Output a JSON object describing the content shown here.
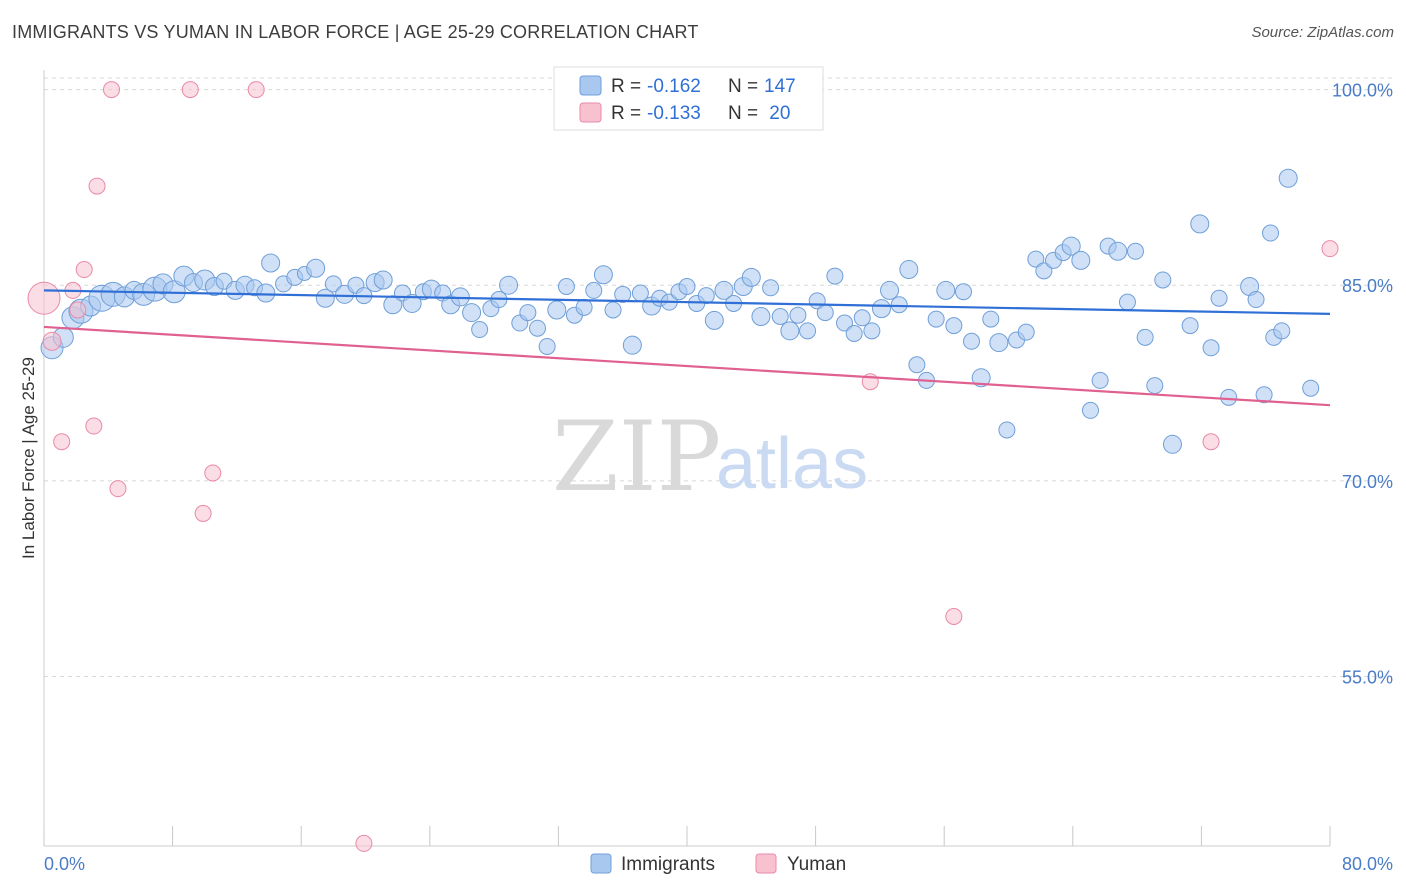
{
  "title": "IMMIGRANTS VS YUMAN IN LABOR FORCE | AGE 25-29 CORRELATION CHART",
  "source": "Source: ZipAtlas.com",
  "watermark": {
    "zip": "ZIP",
    "atlas": "atlas"
  },
  "colors": {
    "immigrants_fill": "#a9c8f0",
    "immigrants_stroke": "#6f9fd8",
    "immigrants_line": "#2f6fd6",
    "yuman_fill": "#f7c1d0",
    "yuman_stroke": "#e98aa8",
    "yuman_line": "#e0608f",
    "tick_text": "#4a7cc7",
    "grid": "#d8d8d8"
  },
  "legend": {
    "rows": [
      {
        "r_label": "R = ",
        "r_value": "-0.162",
        "n_label": "N = ",
        "n_value": "147"
      },
      {
        "r_label": "R = ",
        "r_value": "-0.133",
        "n_label": "N = ",
        "n_value": " 20"
      }
    ]
  },
  "bottom_legend": [
    "Immigrants",
    "Yuman"
  ],
  "chart_data": {
    "type": "scatter",
    "title": "IMMIGRANTS VS YUMAN IN LABOR FORCE | AGE 25-29 CORRELATION CHART",
    "xlabel": "",
    "ylabel": "In Labor Force | Age 25-29",
    "xlim": [
      0,
      80
    ],
    "ylim": [
      42,
      101.5
    ],
    "x_tick_labels": [
      "0.0%",
      "80.0%"
    ],
    "y_ticks": [
      55,
      70,
      85,
      100
    ],
    "y_tick_labels": [
      "55.0%",
      "70.0%",
      "85.0%",
      "100.0%"
    ],
    "grid": "horizontal dashed",
    "legend_position": "top-center",
    "series": [
      {
        "name": "Immigrants",
        "r": -0.162,
        "n": 147,
        "trend": {
          "x": [
            0,
            80
          ],
          "y": [
            84.6,
            82.8
          ]
        },
        "points": [
          [
            0.5,
            80.2,
            11
          ],
          [
            1.2,
            81.0,
            10
          ],
          [
            1.8,
            82.5,
            11
          ],
          [
            2.3,
            83.0,
            12
          ],
          [
            2.9,
            83.4,
            10
          ],
          [
            3.6,
            84.0,
            13
          ],
          [
            4.3,
            84.3,
            12
          ],
          [
            5.0,
            84.1,
            10
          ],
          [
            5.6,
            84.6,
            9
          ],
          [
            6.2,
            84.3,
            11
          ],
          [
            6.9,
            84.7,
            12
          ],
          [
            7.4,
            85.1,
            10
          ],
          [
            8.1,
            84.5,
            11
          ],
          [
            8.7,
            85.7,
            10
          ],
          [
            9.3,
            85.2,
            9
          ],
          [
            10.0,
            85.4,
            10
          ],
          [
            10.6,
            84.9,
            9
          ],
          [
            11.2,
            85.3,
            8
          ],
          [
            11.9,
            84.6,
            9
          ],
          [
            12.5,
            85.0,
            9
          ],
          [
            13.1,
            84.8,
            8
          ],
          [
            13.8,
            84.4,
            9
          ],
          [
            14.1,
            86.7,
            9
          ],
          [
            14.9,
            85.1,
            8
          ],
          [
            15.6,
            85.6,
            8
          ],
          [
            16.2,
            85.9,
            7
          ],
          [
            16.9,
            86.3,
            9
          ],
          [
            17.5,
            84.0,
            9
          ],
          [
            18.0,
            85.1,
            8
          ],
          [
            18.7,
            84.3,
            9
          ],
          [
            19.4,
            85.0,
            8
          ],
          [
            19.9,
            84.2,
            8
          ],
          [
            20.6,
            85.2,
            9
          ],
          [
            21.1,
            85.4,
            9
          ],
          [
            21.7,
            83.5,
            9
          ],
          [
            22.3,
            84.4,
            8
          ],
          [
            22.9,
            83.6,
            9
          ],
          [
            23.6,
            84.5,
            8
          ],
          [
            24.1,
            84.7,
            9
          ],
          [
            24.8,
            84.4,
            8
          ],
          [
            25.3,
            83.5,
            9
          ],
          [
            25.9,
            84.1,
            9
          ],
          [
            26.6,
            82.9,
            9
          ],
          [
            27.1,
            81.6,
            8
          ],
          [
            27.8,
            83.2,
            8
          ],
          [
            28.3,
            83.9,
            8
          ],
          [
            28.9,
            85.0,
            9
          ],
          [
            29.6,
            82.1,
            8
          ],
          [
            30.1,
            82.9,
            8
          ],
          [
            30.7,
            81.7,
            8
          ],
          [
            31.3,
            80.3,
            8
          ],
          [
            31.9,
            83.1,
            9
          ],
          [
            32.5,
            84.9,
            8
          ],
          [
            33.0,
            82.7,
            8
          ],
          [
            33.6,
            83.3,
            8
          ],
          [
            34.2,
            84.6,
            8
          ],
          [
            34.8,
            85.8,
            9
          ],
          [
            35.4,
            83.1,
            8
          ],
          [
            36.0,
            84.3,
            8
          ],
          [
            36.6,
            80.4,
            9
          ],
          [
            37.1,
            84.4,
            8
          ],
          [
            37.8,
            83.4,
            9
          ],
          [
            38.3,
            84.0,
            8
          ],
          [
            38.9,
            83.7,
            8
          ],
          [
            39.5,
            84.5,
            8
          ],
          [
            40.0,
            84.9,
            8
          ],
          [
            40.6,
            83.6,
            8
          ],
          [
            41.2,
            84.2,
            8
          ],
          [
            41.7,
            82.3,
            9
          ],
          [
            42.3,
            84.6,
            9
          ],
          [
            42.9,
            83.6,
            8
          ],
          [
            43.5,
            84.9,
            9
          ],
          [
            44.0,
            85.6,
            9
          ],
          [
            44.6,
            82.6,
            9
          ],
          [
            45.2,
            84.8,
            8
          ],
          [
            45.8,
            82.6,
            8
          ],
          [
            46.4,
            81.5,
            9
          ],
          [
            46.9,
            82.7,
            8
          ],
          [
            47.5,
            81.5,
            8
          ],
          [
            48.1,
            83.8,
            8
          ],
          [
            48.6,
            82.9,
            8
          ],
          [
            49.2,
            85.7,
            8
          ],
          [
            49.8,
            82.1,
            8
          ],
          [
            50.4,
            81.3,
            8
          ],
          [
            50.9,
            82.5,
            8
          ],
          [
            51.5,
            81.5,
            8
          ],
          [
            52.1,
            83.2,
            9
          ],
          [
            52.6,
            84.6,
            9
          ],
          [
            53.2,
            83.5,
            8
          ],
          [
            53.8,
            86.2,
            9
          ],
          [
            54.3,
            78.9,
            8
          ],
          [
            54.9,
            77.7,
            8
          ],
          [
            55.5,
            82.4,
            8
          ],
          [
            56.1,
            84.6,
            9
          ],
          [
            56.6,
            81.9,
            8
          ],
          [
            57.2,
            84.5,
            8
          ],
          [
            57.7,
            80.7,
            8
          ],
          [
            58.3,
            77.9,
            9
          ],
          [
            58.9,
            82.4,
            8
          ],
          [
            59.4,
            80.6,
            9
          ],
          [
            59.9,
            73.9,
            8
          ],
          [
            60.5,
            80.8,
            8
          ],
          [
            61.1,
            81.4,
            8
          ],
          [
            61.7,
            87.0,
            8
          ],
          [
            62.2,
            86.1,
            8
          ],
          [
            62.8,
            86.9,
            8
          ],
          [
            63.4,
            87.5,
            8
          ],
          [
            63.9,
            88.0,
            9
          ],
          [
            64.5,
            86.9,
            9
          ],
          [
            65.1,
            75.4,
            8
          ],
          [
            65.7,
            77.7,
            8
          ],
          [
            66.2,
            88.0,
            8
          ],
          [
            66.8,
            87.6,
            9
          ],
          [
            67.4,
            83.7,
            8
          ],
          [
            67.9,
            87.6,
            8
          ],
          [
            68.5,
            81.0,
            8
          ],
          [
            69.1,
            77.3,
            8
          ],
          [
            69.6,
            85.4,
            8
          ],
          [
            70.2,
            72.8,
            9
          ],
          [
            71.3,
            81.9,
            8
          ],
          [
            71.9,
            89.7,
            9
          ],
          [
            72.6,
            80.2,
            8
          ],
          [
            73.1,
            84.0,
            8
          ],
          [
            73.7,
            76.4,
            8
          ],
          [
            75.0,
            84.9,
            9
          ],
          [
            75.4,
            83.9,
            8
          ],
          [
            75.9,
            76.6,
            8
          ],
          [
            76.5,
            81.0,
            8
          ],
          [
            77.0,
            81.5,
            8
          ],
          [
            76.3,
            89.0,
            8
          ],
          [
            77.4,
            93.2,
            9
          ],
          [
            78.8,
            77.1,
            8
          ]
        ]
      },
      {
        "name": "Yuman",
        "r": -0.133,
        "n": 20,
        "trend": {
          "x": [
            0,
            80
          ],
          "y": [
            81.8,
            75.8
          ]
        },
        "points": [
          [
            0.0,
            84.0,
            16
          ],
          [
            0.5,
            80.7,
            9
          ],
          [
            1.1,
            73.0,
            8
          ],
          [
            1.8,
            84.6,
            8
          ],
          [
            2.1,
            83.1,
            8
          ],
          [
            2.5,
            86.2,
            8
          ],
          [
            3.1,
            74.2,
            8
          ],
          [
            3.3,
            92.6,
            8
          ],
          [
            4.2,
            100.0,
            8
          ],
          [
            4.6,
            69.4,
            8
          ],
          [
            9.1,
            100.0,
            8
          ],
          [
            9.9,
            67.5,
            8
          ],
          [
            10.5,
            70.6,
            8
          ],
          [
            13.2,
            100.0,
            8
          ],
          [
            19.9,
            42.2,
            8
          ],
          [
            51.4,
            77.6,
            8
          ],
          [
            56.6,
            59.6,
            8
          ],
          [
            72.6,
            73.0,
            8
          ],
          [
            80.0,
            87.8,
            8
          ]
        ]
      }
    ]
  }
}
